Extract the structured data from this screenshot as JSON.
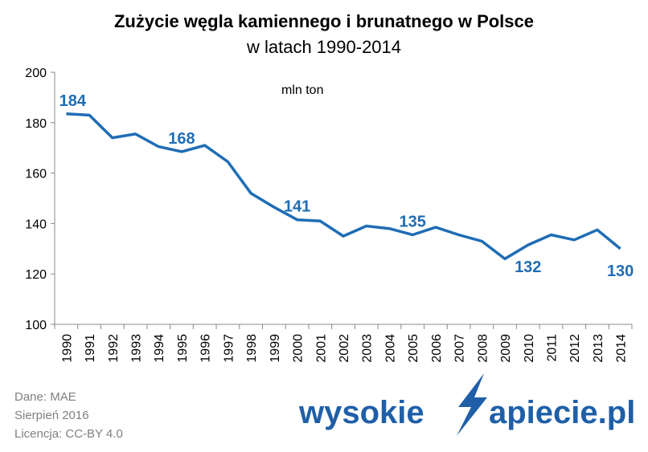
{
  "chart_data": {
    "type": "line",
    "title": "Zużycie węgla kamiennego i brunatnego  w Polsce",
    "subtitle": "w latach 1990-2014",
    "unit": "mln ton",
    "x": [
      "1990",
      "1991",
      "1992",
      "1993",
      "1994",
      "1995",
      "1996",
      "1997",
      "1998",
      "1999",
      "2000",
      "2001",
      "2002",
      "2003",
      "2004",
      "2005",
      "2006",
      "2007",
      "2008",
      "2009",
      "2010",
      "2011",
      "2012",
      "2013",
      "2014"
    ],
    "series": [
      {
        "values": [
          183.5,
          183,
          174,
          175.5,
          170.5,
          168.5,
          171,
          164.5,
          152,
          146.5,
          141.5,
          141,
          135,
          139,
          138,
          135.5,
          138.5,
          135.5,
          133,
          126,
          131.5,
          135.5,
          133.5,
          137.5,
          130
        ]
      }
    ],
    "data_labels": [
      {
        "x": "1990",
        "text": "184",
        "position": "above"
      },
      {
        "x": "1995",
        "text": "168",
        "position": "above"
      },
      {
        "x": "2000",
        "text": "141",
        "position": "above"
      },
      {
        "x": "2005",
        "text": "135",
        "position": "above"
      },
      {
        "x": "2010",
        "text": "132",
        "position": "below"
      },
      {
        "x": "2014",
        "text": "130",
        "position": "below"
      }
    ],
    "yticks": [
      "100",
      "120",
      "140",
      "160",
      "180",
      "200"
    ],
    "ylim": [
      100,
      200
    ],
    "grid": false,
    "line_color": "#1f6db5",
    "label_color": "#1f6db5"
  },
  "source": {
    "line1": "Dane: MAE",
    "line2": "Sierpień 2016",
    "line3": "Licencja: CC-BY 4.0"
  },
  "logo": {
    "text_left": "wysokie",
    "text_right": "apiecie.pl",
    "color": "#1f5fa8"
  }
}
